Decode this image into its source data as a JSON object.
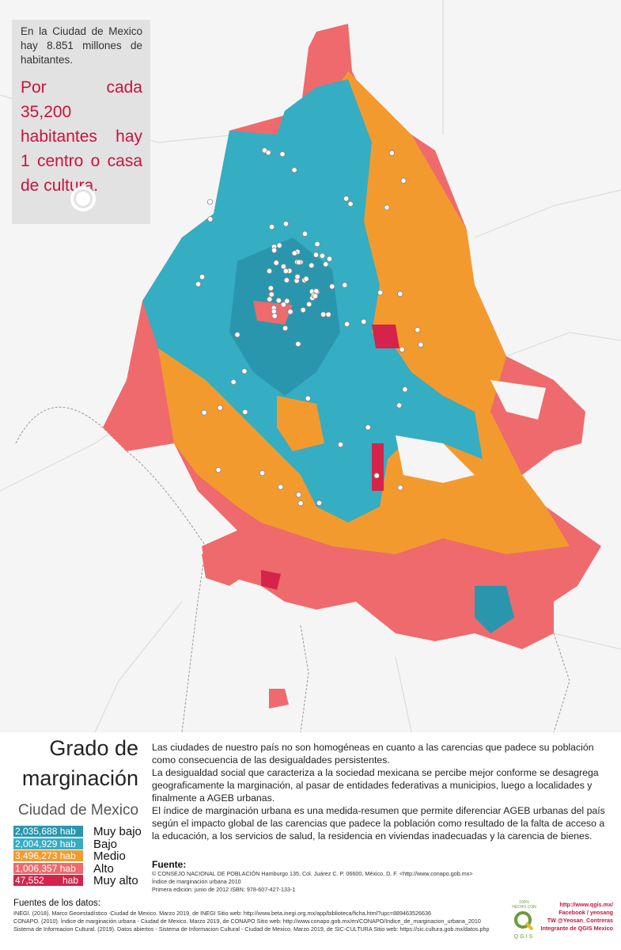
{
  "info_box": {
    "intro": "En la Ciudad de Mexico hay 8.851 millones de habitantes.",
    "highlight": "Por cada 35,200 habitantes hay 1 centro o casa de cultura."
  },
  "title": {
    "line1": "Grado de",
    "line2": "marginación",
    "subtitle": "Ciudad de Mexico"
  },
  "legend": {
    "items": [
      {
        "population": "2,035,688 hab",
        "level": "Muy bajo",
        "color": "#2a96ae"
      },
      {
        "population": "2,004,929 hab",
        "level": "Bajo",
        "color": "#35adc3"
      },
      {
        "population": "3,496,273 hab",
        "level": "Medio",
        "color": "#f39a2e"
      },
      {
        "population": "1,006,357 hab",
        "level": "Alto",
        "color": "#ee6a6c"
      },
      {
        "population": "47,552",
        "unit": "hab",
        "level": "Muy alto",
        "color": "#d5234b"
      }
    ]
  },
  "description": [
    "Las ciudades de nuestro país no son homogéneas en cuanto a las carencias que padece su población como consecuencia de las desigualdades persistentes.",
    "La desigualdad social que caracteriza a la sociedad mexicana se percibe mejor conforme se desagrega geograficamente la marginación, al pasar de entidades federativas a municipios, luego a localidades y finalmente a AGEB urbanas.",
    "El índice de marginación urbana es una medida-resumen que permite diferenciar AGEB urbanas del país según el impacto global de las carencias que padece la población como resultado de la falta de acceso a la educación, a los servicios de salud, la residencia en viviendas inadecuadas y la carencia de bienes."
  ],
  "fuente": {
    "heading": "Fuente:",
    "lines": [
      "© CONSEJO NACIONAL DE POBLACIÓN Hamburgo 135, Col. Juárez C. P. 06600, México, D. F. <http://www.conapo.gob.mx>",
      "Índice de marginación urbana 2010",
      "Primera edición: junio de 2012 ISBN: 978-607-427-133-1"
    ]
  },
  "data_sources": {
    "heading": "Fuentes de los datos:",
    "lines": [
      "INEGI. (2018). Marco Geoestadístico -Ciudad de Mexico. Marzo 2019, de INEGI Sitio web: http://www.beta.inegi.org.mx/app/biblioteca/ficha.html?upc=889463526636",
      "CONAPO. (2010). Índice de marginación urbana - Ciudad de Mexico. Marzo 2019, de CONAPO Sitio web: http://www.conapo.gob.mx/en/CONAPO/Indice_de_marginacion_urbana_2010",
      "Sistema de Informacion Cultural. (2019). Datos abiertos - Sistema de Informacion Cultural - Ciudad de Mexico. Marzo 2019, de SIC-CULTURA Sitio web: https://sic.cultura.gob.mx/datos.php"
    ]
  },
  "credits": {
    "badge_top": "100%",
    "badge_mid": "HECHO CON",
    "badge_name": "QGIS",
    "links": [
      "http://www.qgis.mx/",
      "Facebook / yeosang",
      "TW @Yeosan_Contreras",
      "Integrante de QGIS Mexico"
    ]
  }
}
